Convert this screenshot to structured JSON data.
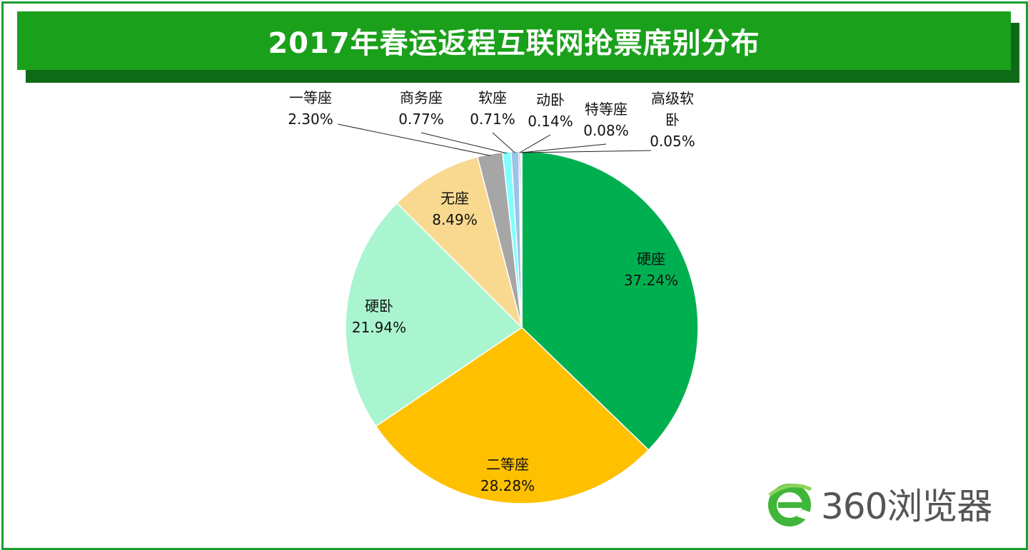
{
  "title": "2017年春运返程互联网抢票席别分布",
  "brand": {
    "text": "360浏览器",
    "color": "#3fb63a"
  },
  "colors": {
    "frame": "#1a9e2e",
    "title_bg": "#1aa01b",
    "title_shadow": "#0f6a17"
  },
  "chart_data": {
    "type": "pie",
    "title": "2017年春运返程互联网抢票席别分布",
    "start_angle_deg": 0,
    "direction": "clockwise",
    "slices": [
      {
        "name": "硬座",
        "value": 37.24,
        "label": "37.24%",
        "color": "#00b050"
      },
      {
        "name": "二等座",
        "value": 28.28,
        "label": "28.28%",
        "color": "#ffc000"
      },
      {
        "name": "硬卧",
        "value": 21.94,
        "label": "21.94%",
        "color": "#a9f5d0"
      },
      {
        "name": "无座",
        "value": 8.49,
        "label": "8.49%",
        "color": "#f8d98f"
      },
      {
        "name": "一等座",
        "value": 2.3,
        "label": "2.30%",
        "color": "#a6a6a6"
      },
      {
        "name": "商务座",
        "value": 0.77,
        "label": "0.77%",
        "color": "#7fffff"
      },
      {
        "name": "软座",
        "value": 0.71,
        "label": "0.71%",
        "color": "#9dc3e6"
      },
      {
        "name": "动卧",
        "value": 0.14,
        "label": "0.14%",
        "color": "#2e75b6"
      },
      {
        "name": "特等座",
        "value": 0.08,
        "label": "0.08%",
        "color": "#c9a0dc"
      },
      {
        "name": "高级软卧",
        "value": 0.05,
        "label": "0.05%",
        "color": "#7f7f7f"
      }
    ]
  }
}
